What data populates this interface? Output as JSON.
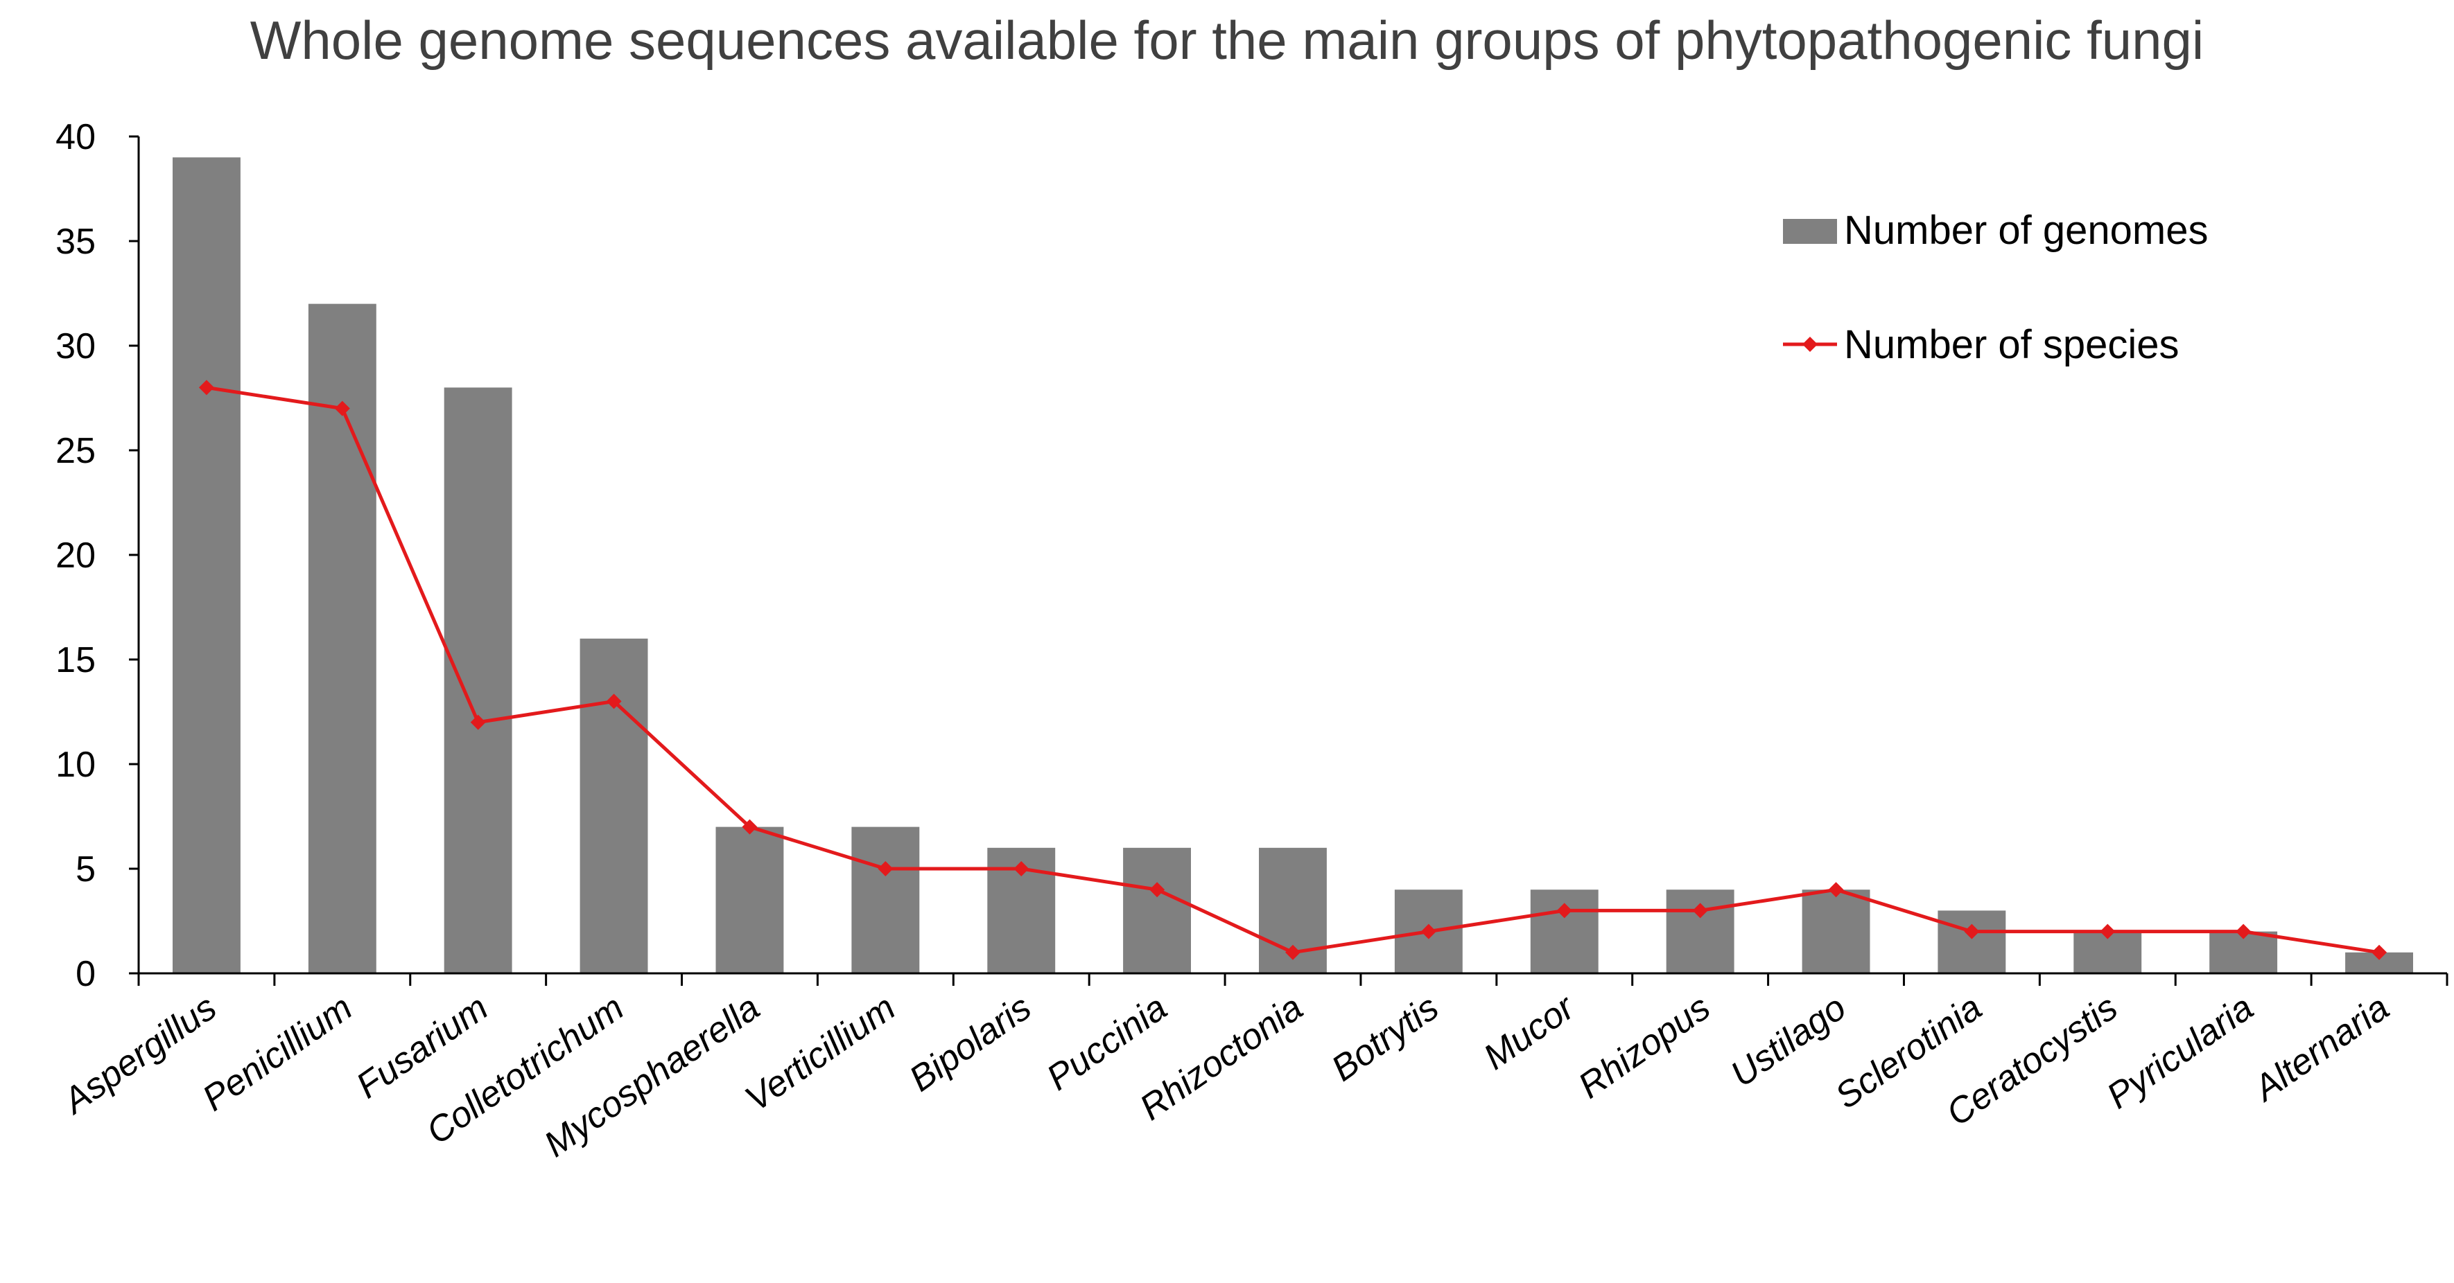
{
  "chart_data": {
    "type": "bar",
    "title": "Whole genome sequences available for the main groups of phytopathogenic fungi",
    "xlabel": "",
    "ylabel": "",
    "categories": [
      "Aspergillus",
      "Penicillium",
      "Fusarium",
      "Colletotrichum",
      "Mycosphaerella",
      "Verticillium",
      "Bipolaris",
      "Puccinia",
      "Rhizoctonia",
      "Botrytis",
      "Mucor",
      "Rhizopus",
      "Ustilago",
      "Sclerotinia",
      "Ceratocystis",
      "Pyricularia",
      "Alternaria"
    ],
    "series": [
      {
        "name": "Number of genomes",
        "type": "bar",
        "color": "#808080",
        "values": [
          39,
          32,
          28,
          16,
          7,
          7,
          6,
          6,
          6,
          4,
          4,
          4,
          4,
          3,
          2,
          2,
          1
        ]
      },
      {
        "name": "Number of species",
        "type": "line",
        "marker": "diamond",
        "color": "#e31a1c",
        "values": [
          28,
          27,
          12,
          13,
          7,
          5,
          5,
          4,
          1,
          2,
          3,
          3,
          4,
          2,
          2,
          2,
          1
        ]
      }
    ],
    "ylim": [
      0,
      40
    ],
    "yticks": [
      "0",
      "5",
      "10",
      "15",
      "20",
      "25",
      "30",
      "35",
      "40"
    ],
    "grid": false,
    "legend_position": "top-right"
  }
}
